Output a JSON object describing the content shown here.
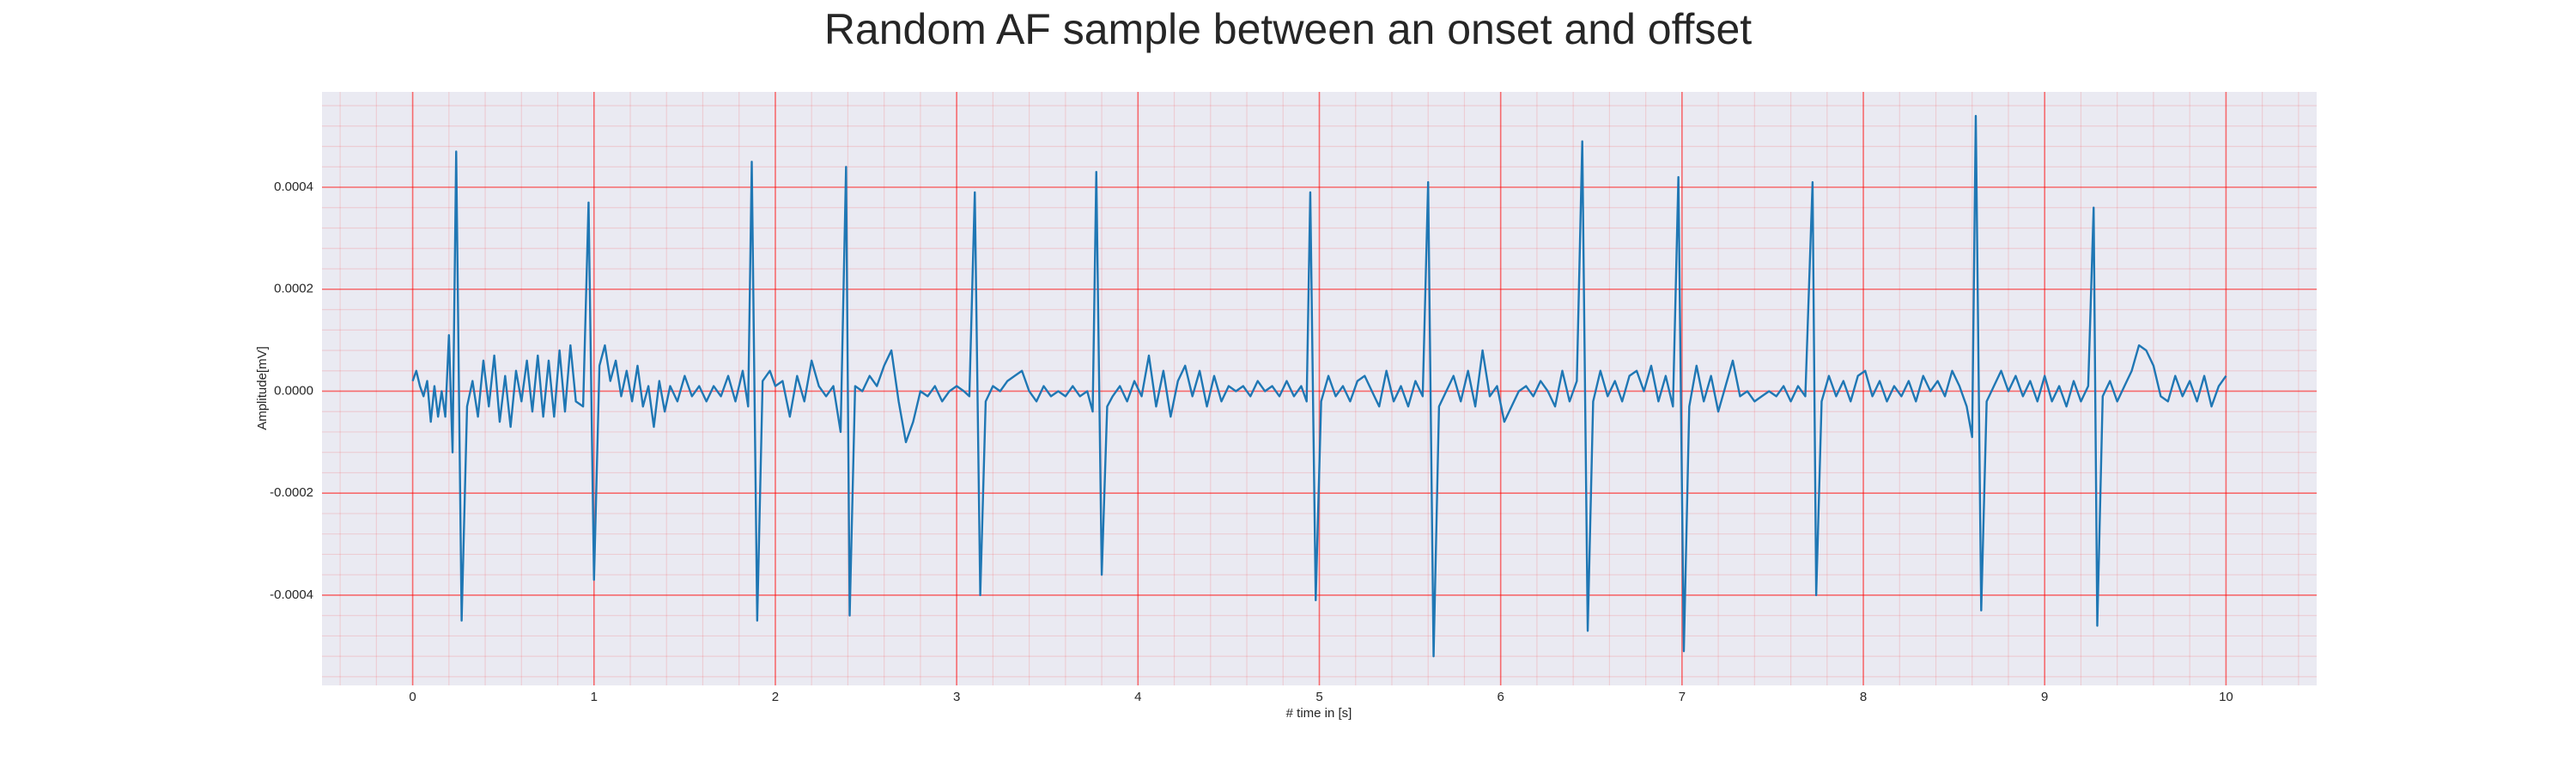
{
  "chart_data": {
    "type": "line",
    "title": "Random AF sample between an onset and offset",
    "xlabel": "# time in [s]",
    "ylabel": "Amplitude[mV]",
    "xlim": [
      -0.5,
      10.5
    ],
    "xticks": [
      0,
      1,
      2,
      3,
      4,
      5,
      6,
      7,
      8,
      9,
      10
    ],
    "ylim": [
      -0.000577,
      0.000587
    ],
    "yticks": [
      {
        "value": -0.0004,
        "label": "-0.0004"
      },
      {
        "value": -0.0002,
        "label": "-0.0002"
      },
      {
        "value": 0,
        "label": "0.0000"
      },
      {
        "value": 0.0002,
        "label": "0.0002"
      },
      {
        "value": 0.0004,
        "label": "0.0004"
      }
    ],
    "grid": true,
    "minor_grid": true,
    "minor_divisions": 5,
    "background": "#eaeaf2",
    "grid_color": "#ff0000",
    "x": [
      0,
      0.02,
      0.04,
      0.06,
      0.08,
      0.1,
      0.12,
      0.14,
      0.16,
      0.18,
      0.2,
      0.22,
      0.24,
      0.27,
      0.3,
      0.33,
      0.36,
      0.39,
      0.42,
      0.45,
      0.48,
      0.51,
      0.54,
      0.57,
      0.6,
      0.63,
      0.66,
      0.69,
      0.72,
      0.75,
      0.78,
      0.81,
      0.84,
      0.87,
      0.9,
      0.94,
      0.97,
      1.0,
      1.03,
      1.06,
      1.09,
      1.12,
      1.15,
      1.18,
      1.21,
      1.24,
      1.27,
      1.3,
      1.33,
      1.36,
      1.39,
      1.42,
      1.46,
      1.5,
      1.54,
      1.58,
      1.62,
      1.66,
      1.7,
      1.74,
      1.78,
      1.82,
      1.85,
      1.87,
      1.9,
      1.93,
      1.97,
      2.0,
      2.04,
      2.08,
      2.12,
      2.16,
      2.2,
      2.24,
      2.28,
      2.32,
      2.36,
      2.39,
      2.41,
      2.44,
      2.48,
      2.52,
      2.56,
      2.6,
      2.64,
      2.68,
      2.72,
      2.76,
      2.8,
      2.84,
      2.88,
      2.92,
      2.96,
      3.0,
      3.04,
      3.07,
      3.1,
      3.13,
      3.16,
      3.2,
      3.24,
      3.28,
      3.32,
      3.36,
      3.4,
      3.44,
      3.48,
      3.52,
      3.56,
      3.6,
      3.64,
      3.68,
      3.72,
      3.75,
      3.77,
      3.8,
      3.83,
      3.86,
      3.9,
      3.94,
      3.98,
      4.02,
      4.06,
      4.1,
      4.14,
      4.18,
      4.22,
      4.26,
      4.3,
      4.34,
      4.38,
      4.42,
      4.46,
      4.5,
      4.54,
      4.58,
      4.62,
      4.66,
      4.7,
      4.74,
      4.78,
      4.82,
      4.86,
      4.9,
      4.93,
      4.95,
      4.98,
      5.01,
      5.05,
      5.09,
      5.13,
      5.17,
      5.21,
      5.25,
      5.29,
      5.33,
      5.37,
      5.41,
      5.45,
      5.49,
      5.53,
      5.57,
      5.6,
      5.63,
      5.66,
      5.7,
      5.74,
      5.78,
      5.82,
      5.86,
      5.9,
      5.94,
      5.98,
      6.02,
      6.06,
      6.1,
      6.14,
      6.18,
      6.22,
      6.26,
      6.3,
      6.34,
      6.38,
      6.42,
      6.45,
      6.48,
      6.51,
      6.55,
      6.59,
      6.63,
      6.67,
      6.71,
      6.75,
      6.79,
      6.83,
      6.87,
      6.91,
      6.95,
      6.98,
      7.01,
      7.04,
      7.08,
      7.12,
      7.16,
      7.2,
      7.24,
      7.28,
      7.32,
      7.36,
      7.4,
      7.44,
      7.48,
      7.52,
      7.56,
      7.6,
      7.64,
      7.68,
      7.72,
      7.74,
      7.77,
      7.81,
      7.85,
      7.89,
      7.93,
      7.97,
      8.01,
      8.05,
      8.09,
      8.13,
      8.17,
      8.21,
      8.25,
      8.29,
      8.33,
      8.37,
      8.41,
      8.45,
      8.49,
      8.53,
      8.57,
      8.6,
      8.62,
      8.65,
      8.68,
      8.72,
      8.76,
      8.8,
      8.84,
      8.88,
      8.92,
      8.96,
      9.0,
      9.04,
      9.08,
      9.12,
      9.16,
      9.2,
      9.24,
      9.27,
      9.29,
      9.32,
      9.36,
      9.4,
      9.44,
      9.48,
      9.52,
      9.56,
      9.6,
      9.64,
      9.68,
      9.72,
      9.76,
      9.8,
      9.84,
      9.88,
      9.92,
      9.96,
      10.0
    ],
    "series": [
      {
        "color": "#1f77b4",
        "values": [
          2e-05,
          4e-05,
          1e-05,
          -1e-05,
          2e-05,
          -6e-05,
          1e-05,
          -5e-05,
          0,
          -5e-05,
          0.00011,
          -0.00012,
          0.00047,
          -0.00045,
          -3e-05,
          2e-05,
          -5e-05,
          6e-05,
          -3e-05,
          7e-05,
          -6e-05,
          3e-05,
          -7e-05,
          4e-05,
          -2e-05,
          6e-05,
          -4e-05,
          7e-05,
          -5e-05,
          6e-05,
          -5e-05,
          8e-05,
          -4e-05,
          9e-05,
          -2e-05,
          -3e-05,
          0.00037,
          -0.00037,
          5e-05,
          9e-05,
          2e-05,
          6e-05,
          -1e-05,
          4e-05,
          -2e-05,
          5e-05,
          -3e-05,
          1e-05,
          -7e-05,
          2e-05,
          -4e-05,
          1e-05,
          -2e-05,
          3e-05,
          -1e-05,
          1e-05,
          -2e-05,
          1e-05,
          -1e-05,
          3e-05,
          -2e-05,
          4e-05,
          -3e-05,
          0.00045,
          -0.00045,
          2e-05,
          4e-05,
          1e-05,
          2e-05,
          -5e-05,
          3e-05,
          -2e-05,
          6e-05,
          1e-05,
          -1e-05,
          1e-05,
          -8e-05,
          0.00044,
          -0.00044,
          1e-05,
          0,
          3e-05,
          1e-05,
          5e-05,
          8e-05,
          -2e-05,
          -0.0001,
          -6e-05,
          0,
          -1e-05,
          1e-05,
          -2e-05,
          0,
          1e-05,
          0,
          -1e-05,
          0.00039,
          -0.0004,
          -2e-05,
          1e-05,
          0,
          2e-05,
          3e-05,
          4e-05,
          0,
          -2e-05,
          1e-05,
          -1e-05,
          0,
          -1e-05,
          1e-05,
          -1e-05,
          0,
          -4e-05,
          0.00043,
          -0.00036,
          -3e-05,
          -1e-05,
          1e-05,
          -2e-05,
          2e-05,
          -1e-05,
          7e-05,
          -3e-05,
          4e-05,
          -5e-05,
          2e-05,
          5e-05,
          -1e-05,
          4e-05,
          -3e-05,
          3e-05,
          -2e-05,
          1e-05,
          0,
          1e-05,
          -1e-05,
          2e-05,
          0,
          1e-05,
          -1e-05,
          2e-05,
          -1e-05,
          1e-05,
          -2e-05,
          0.00039,
          -0.00041,
          -2e-05,
          3e-05,
          -1e-05,
          1e-05,
          -2e-05,
          2e-05,
          3e-05,
          0,
          -3e-05,
          4e-05,
          -2e-05,
          1e-05,
          -3e-05,
          2e-05,
          -1e-05,
          0.00041,
          -0.00052,
          -3e-05,
          0,
          3e-05,
          -2e-05,
          4e-05,
          -3e-05,
          8e-05,
          -1e-05,
          1e-05,
          -6e-05,
          -3e-05,
          0,
          1e-05,
          -1e-05,
          2e-05,
          0,
          -3e-05,
          4e-05,
          -2e-05,
          2e-05,
          0.00049,
          -0.00047,
          -2e-05,
          4e-05,
          -1e-05,
          2e-05,
          -2e-05,
          3e-05,
          4e-05,
          0,
          5e-05,
          -2e-05,
          3e-05,
          -3e-05,
          0.00042,
          -0.00051,
          -3e-05,
          5e-05,
          -2e-05,
          3e-05,
          -4e-05,
          1e-05,
          6e-05,
          -1e-05,
          0,
          -2e-05,
          -1e-05,
          0,
          -1e-05,
          1e-05,
          -2e-05,
          1e-05,
          -1e-05,
          0.00041,
          -0.0004,
          -2e-05,
          3e-05,
          -1e-05,
          2e-05,
          -2e-05,
          3e-05,
          4e-05,
          -1e-05,
          2e-05,
          -2e-05,
          1e-05,
          -1e-05,
          2e-05,
          -2e-05,
          3e-05,
          0,
          2e-05,
          -1e-05,
          4e-05,
          1e-05,
          -3e-05,
          -9e-05,
          0.00054,
          -0.00043,
          -2e-05,
          1e-05,
          4e-05,
          0,
          3e-05,
          -1e-05,
          2e-05,
          -2e-05,
          3e-05,
          -2e-05,
          1e-05,
          -3e-05,
          2e-05,
          -2e-05,
          1e-05,
          0.00036,
          -0.00046,
          -1e-05,
          2e-05,
          -2e-05,
          1e-05,
          4e-05,
          9e-05,
          8e-05,
          5e-05,
          -1e-05,
          -2e-05,
          3e-05,
          -1e-05,
          2e-05,
          -2e-05,
          3e-05,
          -3e-05,
          1e-05,
          3e-05
        ]
      }
    ]
  }
}
